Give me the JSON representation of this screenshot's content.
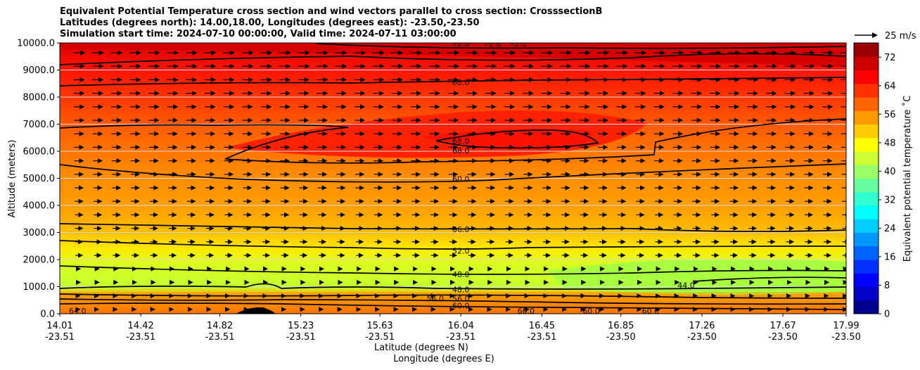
{
  "chart_data": {
    "type": "contourf",
    "title_lines": [
      "Equivalent Potential Temperature cross section and wind vectors parallel to cross section: CrosssectionB",
      "Latitudes (degrees north): 14.00,18.00, Longitudes (degrees east): -23.50,-23.50",
      "Simulation start time: 2024-07-10 00:00:00, Valid time: 2024-07-11 03:00:00"
    ],
    "ylabel": "Altitude (meters)",
    "xlabel_lat": "Latitude (degrees N)",
    "xlabel_lon": "Longitude (degrees E)",
    "ylim": [
      0,
      10000
    ],
    "yticks": [
      "0.0",
      "1000.0",
      "2000.0",
      "3000.0",
      "4000.0",
      "5000.0",
      "6000.0",
      "7000.0",
      "8000.0",
      "9000.0",
      "10000.0"
    ],
    "xlim": [
      14.01,
      17.99
    ],
    "xticks": [
      {
        "x": 14.01,
        "lat": "14.01",
        "lon": "-23.51"
      },
      {
        "x": 14.42,
        "lat": "14.42",
        "lon": "-23.51"
      },
      {
        "x": 14.82,
        "lat": "14.82",
        "lon": "-23.51"
      },
      {
        "x": 15.23,
        "lat": "15.23",
        "lon": "-23.51"
      },
      {
        "x": 15.63,
        "lat": "15.63",
        "lon": "-23.51"
      },
      {
        "x": 16.04,
        "lat": "16.04",
        "lon": "-23.51"
      },
      {
        "x": 16.45,
        "lat": "16.45",
        "lon": "-23.51"
      },
      {
        "x": 16.85,
        "lat": "16.85",
        "lon": "-23.50"
      },
      {
        "x": 17.26,
        "lat": "17.26",
        "lon": "-23.50"
      },
      {
        "x": 17.67,
        "lat": "17.67",
        "lon": "-23.50"
      },
      {
        "x": 17.99,
        "lat": "17.99",
        "lon": "-23.50"
      }
    ],
    "colorbar": {
      "label": "Equivalent potential temperature ˚C",
      "min": 0,
      "max": 76,
      "ticks": [
        "0",
        "8",
        "16",
        "24",
        "32",
        "40",
        "48",
        "56",
        "64",
        "72"
      ],
      "colors": [
        "#00008f",
        "#0000c8",
        "#0000ff",
        "#0030ff",
        "#0064ff",
        "#0098ff",
        "#00ccff",
        "#00ffff",
        "#30ffcf",
        "#64ff9b",
        "#98ff67",
        "#ccff33",
        "#ffff00",
        "#ffcc00",
        "#ff9800",
        "#ff6400",
        "#ff3000",
        "#ff0000",
        "#cf0000",
        "#9b0000"
      ]
    },
    "wind_key": "25 m/s",
    "contour_levels": [
      44,
      48,
      52,
      56,
      60,
      64,
      68,
      72
    ],
    "contour_labels": [
      {
        "text": "68.0",
        "x": 16.04,
        "y": 8550
      },
      {
        "text": "68.0",
        "x": 16.04,
        "y": 6380
      },
      {
        "text": "68.0",
        "x": 16.04,
        "y": 6020
      },
      {
        "text": "60.0",
        "x": 16.04,
        "y": 4980
      },
      {
        "text": "56.0",
        "x": 16.04,
        "y": 3120
      },
      {
        "text": "52.0",
        "x": 16.04,
        "y": 2320
      },
      {
        "text": "48.0",
        "x": 16.04,
        "y": 1460
      },
      {
        "text": "48.0",
        "x": 16.04,
        "y": 900
      },
      {
        "text": "56.0",
        "x": 16.04,
        "y": 560
      },
      {
        "text": "60.0",
        "x": 16.04,
        "y": 300
      },
      {
        "text": "56.0",
        "x": 15.91,
        "y": 560
      },
      {
        "text": "72.0",
        "x": 16.04,
        "y": 9980
      },
      {
        "text": "72.0",
        "x": 16.2,
        "y": 9980
      },
      {
        "text": "72.0",
        "x": 16.33,
        "y": 9980
      },
      {
        "text": "60.0",
        "x": 16.37,
        "y": 100
      },
      {
        "text": "60.0",
        "x": 16.7,
        "y": 100
      },
      {
        "text": "60.0",
        "x": 17.0,
        "y": 100
      },
      {
        "text": "44.0",
        "x": 17.18,
        "y": 1050
      },
      {
        "text": "64.0",
        "x": 14.1,
        "y": 100
      }
    ]
  }
}
